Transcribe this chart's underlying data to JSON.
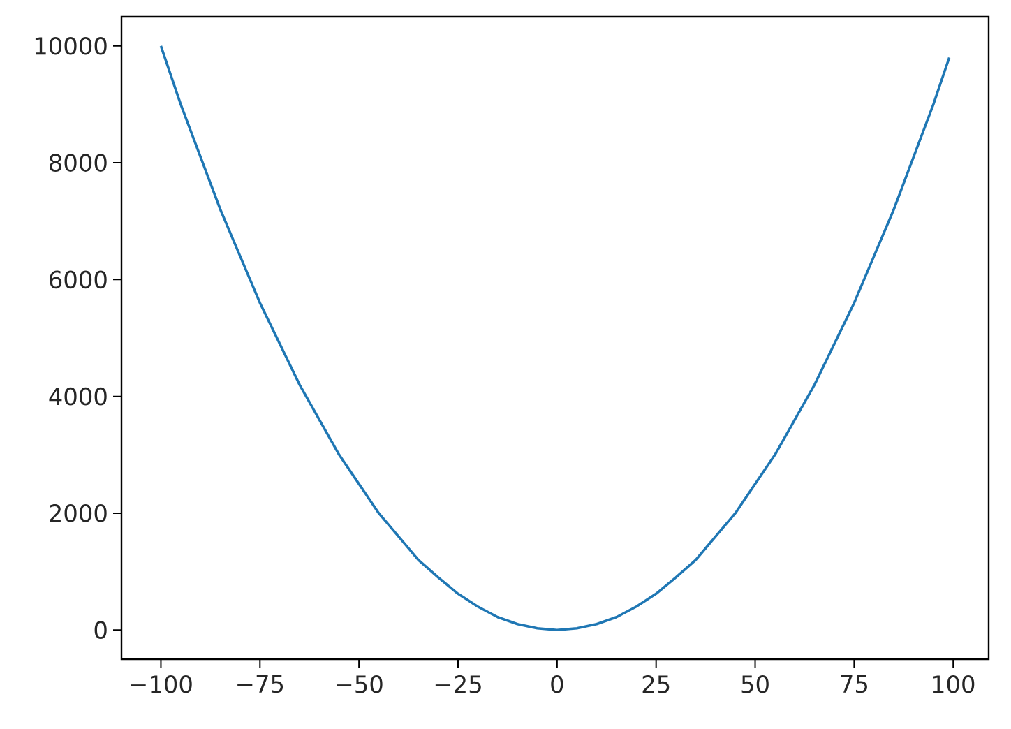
{
  "chart_data": {
    "type": "line",
    "x": [
      -100,
      -95,
      -90,
      -85,
      -80,
      -75,
      -70,
      -65,
      -60,
      -55,
      -50,
      -45,
      -40,
      -35,
      -30,
      -25,
      -20,
      -15,
      -10,
      -5,
      0,
      5,
      10,
      15,
      20,
      25,
      30,
      35,
      40,
      45,
      50,
      55,
      60,
      65,
      70,
      75,
      80,
      85,
      90,
      95,
      99
    ],
    "values": [
      10000,
      9000,
      8100,
      7200,
      6400,
      5600,
      4900,
      4200,
      3600,
      3000,
      2500,
      2000,
      1600,
      1200,
      900,
      620,
      400,
      220,
      100,
      30,
      0,
      30,
      100,
      220,
      400,
      620,
      900,
      1200,
      1600,
      2000,
      2500,
      3000,
      3600,
      4200,
      4900,
      5600,
      6400,
      7200,
      8100,
      9000,
      9800
    ],
    "color": "#1f77b4",
    "xlim": [
      -109.95,
      108.95
    ],
    "ylim": [
      -500,
      10500
    ],
    "xticks": [
      {
        "value": -100,
        "label": "−100"
      },
      {
        "value": -75,
        "label": "−75"
      },
      {
        "value": -50,
        "label": "−50"
      },
      {
        "value": -25,
        "label": "−25"
      },
      0,
      25,
      50,
      75,
      100
    ],
    "yticks": [
      0,
      2000,
      4000,
      6000,
      8000,
      10000
    ],
    "grid": false,
    "marker": "none",
    "line_style": "solid"
  }
}
